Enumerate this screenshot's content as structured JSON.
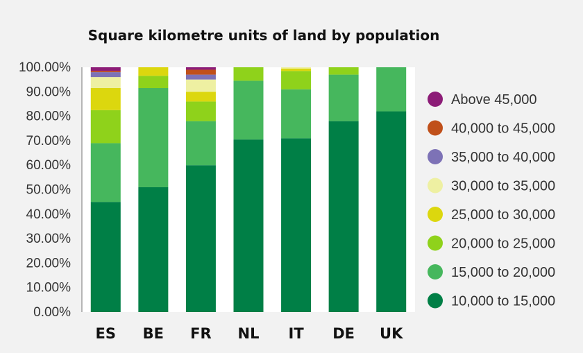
{
  "chart_data": {
    "type": "bar",
    "stacked": true,
    "title": "Square kilometre units of land by population",
    "categories": [
      "ES",
      "BE",
      "FR",
      "NL",
      "IT",
      "DE",
      "UK"
    ],
    "ylim": [
      0,
      100
    ],
    "y_tick_labels": [
      "0.00%",
      "10.00%",
      "20.00%",
      "30.00%",
      "40.00%",
      "50.00%",
      "60.00%",
      "70.00%",
      "80.00%",
      "90.00%",
      "100.00%"
    ],
    "legend_position": "right",
    "series": [
      {
        "name": "10,000 to 15,000",
        "color": "#007f46",
        "values": [
          45,
          51,
          60,
          70.5,
          71,
          78,
          82
        ]
      },
      {
        "name": "15,000 to 20,000",
        "color": "#46b75d",
        "values": [
          24,
          40.5,
          18,
          24,
          20,
          19,
          18
        ]
      },
      {
        "name": "20,000 to 25,000",
        "color": "#8fd21b",
        "values": [
          13.5,
          5,
          8,
          5.5,
          7.5,
          3,
          0
        ]
      },
      {
        "name": "25,000 to 30,000",
        "color": "#dcd70e",
        "values": [
          9,
          3.5,
          4,
          0,
          1,
          0,
          0
        ]
      },
      {
        "name": "30,000 to 35,000",
        "color": "#eef0a2",
        "values": [
          4.5,
          0,
          5,
          0,
          0.5,
          0,
          0
        ]
      },
      {
        "name": "35,000 to 40,000",
        "color": "#7d72b6",
        "values": [
          2,
          0,
          2,
          0,
          0,
          0,
          0
        ]
      },
      {
        "name": "40,000 to 45,000",
        "color": "#c0501a",
        "values": [
          0.5,
          0,
          2,
          0,
          0,
          0,
          0
        ]
      },
      {
        "name": "Above 45,000",
        "color": "#8c1c77",
        "values": [
          1.5,
          0,
          1,
          0,
          0,
          0,
          0
        ]
      }
    ]
  }
}
